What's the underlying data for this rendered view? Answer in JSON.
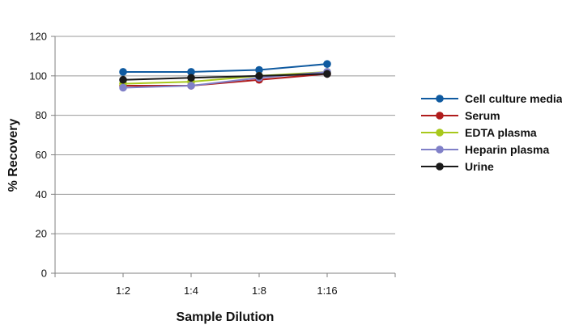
{
  "chart_data": {
    "type": "line",
    "title": "",
    "xlabel": "Sample Dilution",
    "ylabel": "% Recovery",
    "categories": [
      "1:2",
      "1:4",
      "1:8",
      "1:16"
    ],
    "ylim": [
      0,
      120
    ],
    "yticks": [
      0,
      20,
      40,
      60,
      80,
      100,
      120
    ],
    "grid": true,
    "legend_position": "right",
    "series": [
      {
        "name": "Cell culture media",
        "color": "#0f5aa0",
        "values": [
          102,
          102,
          103,
          106
        ]
      },
      {
        "name": "Serum",
        "color": "#b01c1c",
        "values": [
          95,
          95,
          98,
          101
        ]
      },
      {
        "name": "EDTA plasma",
        "color": "#a8c81c",
        "values": [
          96,
          97,
          100,
          102
        ]
      },
      {
        "name": "Heparin plasma",
        "color": "#8080c8",
        "values": [
          94,
          95,
          99,
          102
        ]
      },
      {
        "name": "Urine",
        "color": "#1a1a1a",
        "values": [
          98,
          99,
          100,
          101
        ]
      }
    ]
  }
}
